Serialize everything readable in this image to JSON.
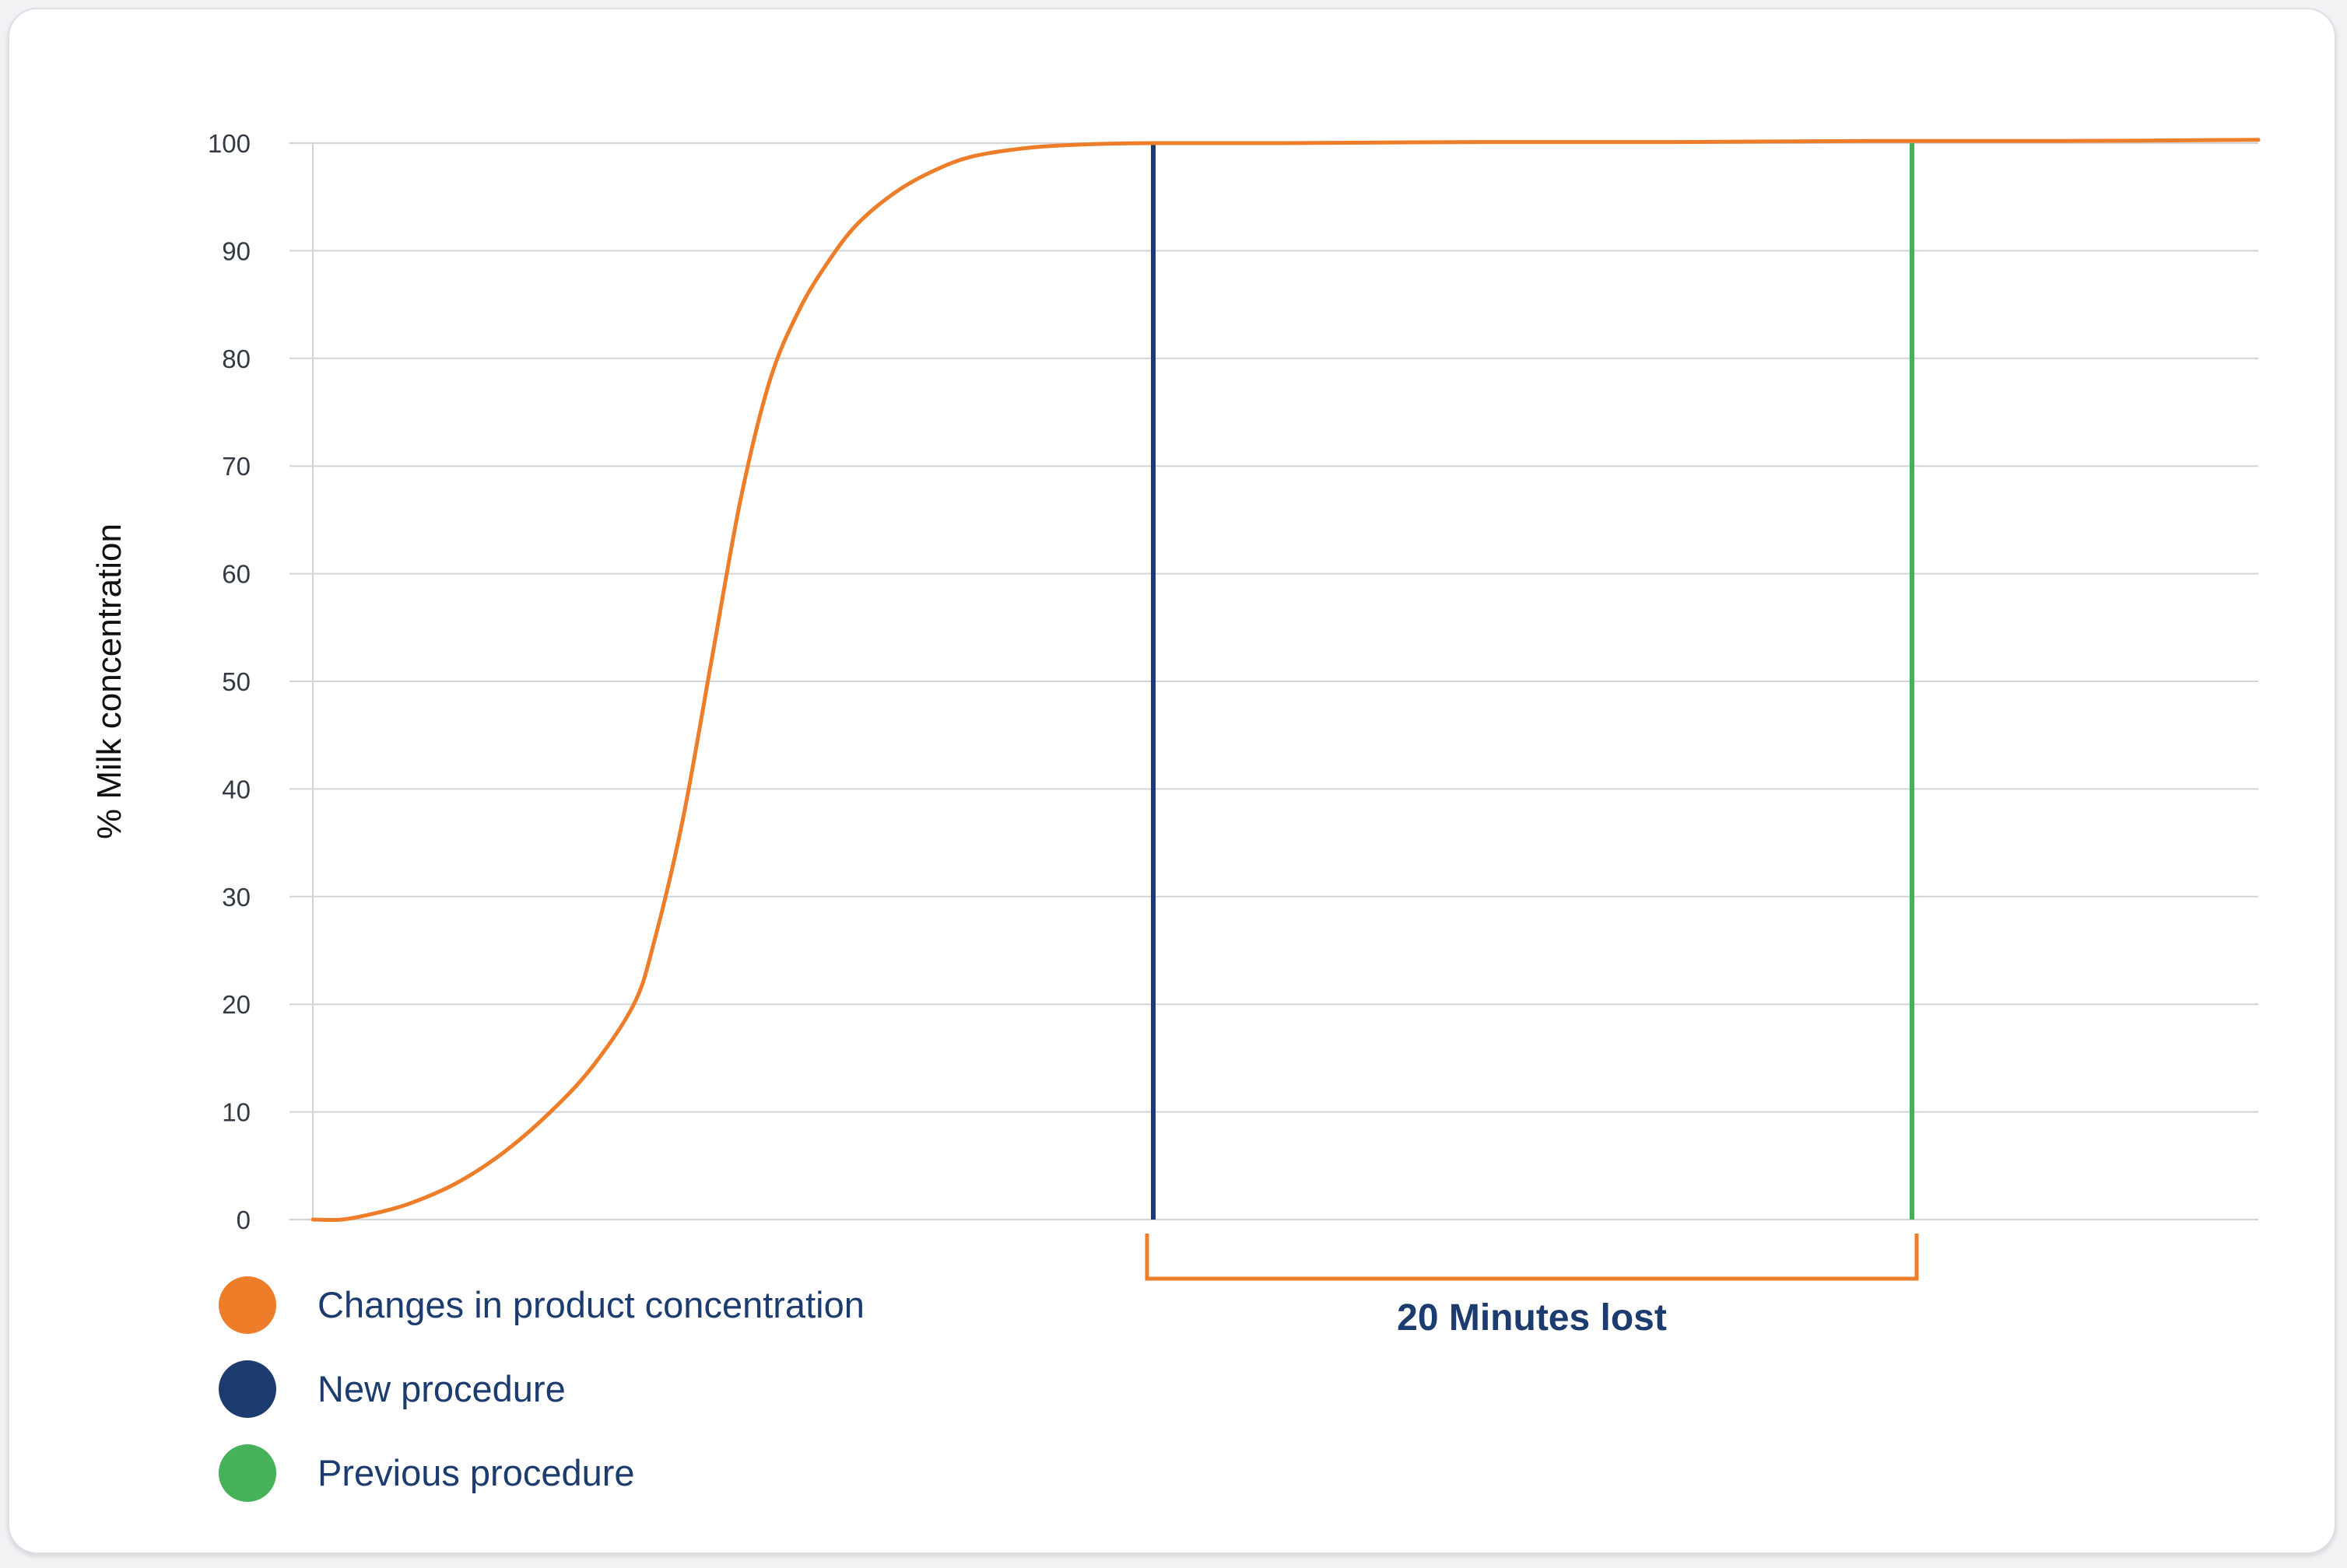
{
  "chart_data": {
    "type": "line",
    "title": "",
    "xlabel": "",
    "ylabel": "% Milk concentration",
    "ylim": [
      0,
      100
    ],
    "yticks": [
      0,
      10,
      20,
      30,
      40,
      50,
      60,
      70,
      80,
      90,
      100
    ],
    "grid": true,
    "xlim": [
      0,
      100
    ],
    "series": [
      {
        "name": "Changes in product concentration",
        "color": "#ee7d2a",
        "x": [
          0,
          1.5,
          3,
          5,
          7.5,
          10,
          12.5,
          14.5,
          16.5,
          17.5,
          19,
          20.5,
          22,
          23.5,
          25,
          26.5,
          28,
          30,
          32,
          34,
          37,
          40,
          43.2,
          50,
          60,
          70,
          80,
          90,
          100
        ],
        "y": [
          0,
          0,
          0.5,
          1.5,
          3.5,
          6.5,
          10.5,
          14.5,
          20,
          25.5,
          37,
          52,
          67,
          78,
          84.5,
          89,
          92.5,
          95.5,
          97.5,
          98.8,
          99.6,
          99.9,
          100,
          100,
          100.1,
          100.1,
          100.2,
          100.2,
          100.3
        ]
      }
    ],
    "markers": [
      {
        "name": "New procedure",
        "color": "#1c3b6e",
        "x": 43.2
      },
      {
        "name": "Previous procedure",
        "color": "#45b25a",
        "x": 82.2
      }
    ],
    "annotation": {
      "text": "20 Minutes lost",
      "x_start": 43.2,
      "x_end": 82.2,
      "color": "#ee7d2a"
    },
    "legend": {
      "position": "bottom-left",
      "items": [
        {
          "label": "Changes in product concentration",
          "color": "#ee7d2a"
        },
        {
          "label": "New procedure",
          "color": "#1c3b6e"
        },
        {
          "label": "Previous procedure",
          "color": "#45b25a"
        }
      ]
    }
  }
}
